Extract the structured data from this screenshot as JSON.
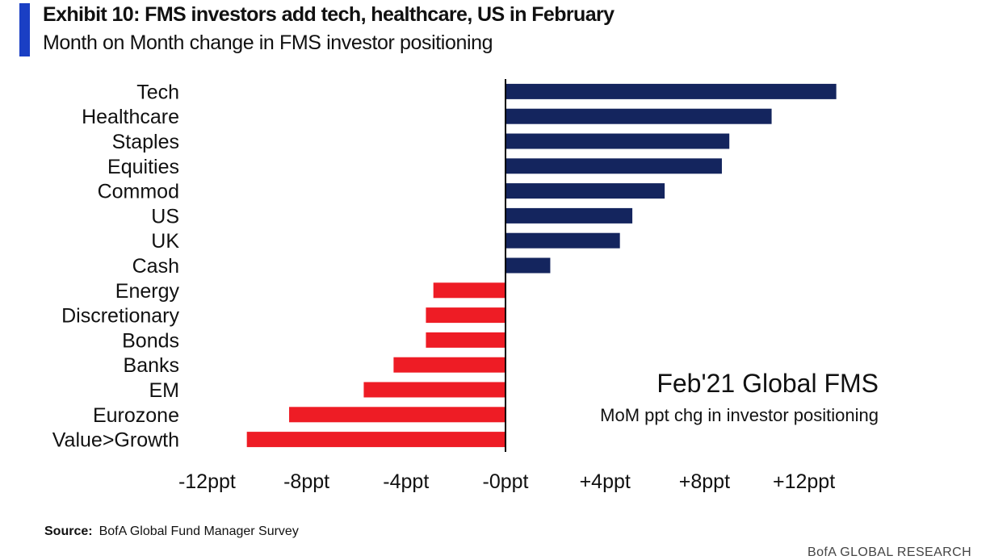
{
  "header": {
    "title": "Exhibit 10: FMS investors add tech, healthcare, US in February",
    "subtitle": "Month on Month change in FMS investor positioning"
  },
  "chart_data": {
    "type": "bar",
    "orientation": "horizontal",
    "categories": [
      "Tech",
      "Healthcare",
      "Staples",
      "Equities",
      "Commod",
      "US",
      "UK",
      "Cash",
      "Energy",
      "Discretionary",
      "Bonds",
      "Banks",
      "EM",
      "Eurozone",
      "Value>Growth"
    ],
    "values": [
      13.3,
      10.7,
      9.0,
      8.7,
      6.4,
      5.1,
      4.6,
      1.8,
      -2.9,
      -3.2,
      -3.2,
      -4.5,
      -5.7,
      -8.7,
      -10.4
    ],
    "xlim": [
      -12.5,
      13.5
    ],
    "x_ticks": [
      -12,
      -8,
      -4,
      0,
      4,
      8,
      12
    ],
    "x_tick_labels": [
      "-12ppt",
      "-8ppt",
      "-4ppt",
      "-0ppt",
      "+4ppt",
      "+8ppt",
      "+12ppt"
    ],
    "colors": {
      "positive": "#14255e",
      "negative": "#ee1c25"
    },
    "annotation": {
      "title": "Feb'21 Global FMS",
      "subtitle": "MoM ppt chg in investor positioning"
    },
    "grid": false
  },
  "footer": {
    "source_label": "Source:",
    "source_text": "BofA Global Fund Manager Survey",
    "brand": "BofA GLOBAL RESEARCH"
  }
}
